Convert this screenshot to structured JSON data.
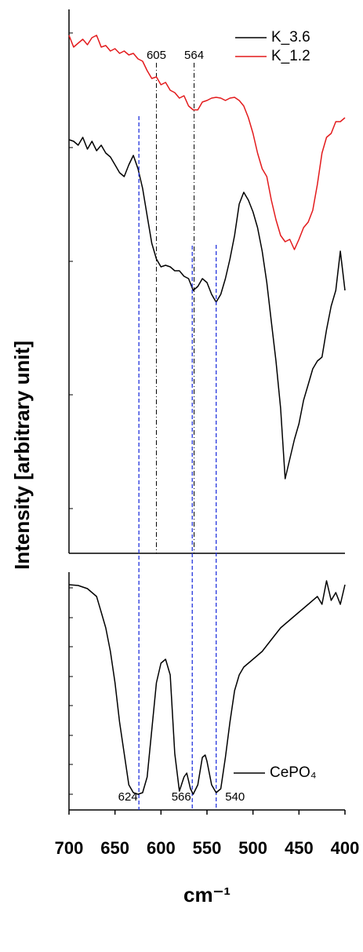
{
  "chart_data": [
    {
      "type": "line",
      "ylabel": "Intensity [arbitrary unit]",
      "xlim": [
        700,
        400
      ],
      "ylim": [
        0,
        690
      ],
      "yticks": [
        57,
        202,
        372,
        517,
        663
      ],
      "legend": "upper right",
      "markers": [
        605,
        564
      ],
      "x": [
        700,
        695,
        690,
        685,
        680,
        675,
        670,
        665,
        660,
        655,
        650,
        645,
        640,
        635,
        630,
        625,
        620,
        615,
        610,
        605,
        600,
        595,
        590,
        585,
        580,
        575,
        570,
        565,
        560,
        555,
        550,
        545,
        540,
        535,
        530,
        525,
        520,
        515,
        510,
        505,
        500,
        495,
        490,
        485,
        480,
        475,
        470,
        465,
        460,
        455,
        450,
        445,
        440,
        435,
        430,
        425,
        420,
        415,
        410,
        405,
        400
      ],
      "series": [
        {
          "name": "K_3.6",
          "color": "#000000",
          "values": [
            527,
            525,
            520,
            530,
            515,
            525,
            513,
            520,
            510,
            505,
            495,
            485,
            480,
            495,
            507,
            490,
            465,
            430,
            395,
            375,
            365,
            367,
            365,
            360,
            360,
            353,
            350,
            335,
            340,
            350,
            345,
            330,
            320,
            330,
            350,
            375,
            405,
            445,
            460,
            450,
            435,
            415,
            385,
            345,
            295,
            245,
            185,
            95,
            120,
            145,
            165,
            195,
            215,
            235,
            245,
            250,
            285,
            315,
            335,
            385,
            335
          ]
        },
        {
          "name": "K_1.2",
          "color": "#e31a1c",
          "values": [
            660,
            645,
            650,
            655,
            648,
            657,
            660,
            645,
            647,
            640,
            643,
            637,
            640,
            635,
            637,
            630,
            627,
            615,
            605,
            607,
            597,
            600,
            590,
            587,
            580,
            583,
            570,
            565,
            565,
            575,
            577,
            580,
            581,
            580,
            577,
            580,
            581,
            577,
            570,
            555,
            535,
            510,
            490,
            480,
            450,
            425,
            405,
            397,
            400,
            387,
            400,
            415,
            422,
            437,
            470,
            510,
            530,
            535,
            550,
            550,
            555
          ]
        }
      ]
    },
    {
      "type": "line",
      "xlabel": "cm⁻¹",
      "xlim": [
        700,
        400
      ],
      "xticks": [
        700,
        650,
        600,
        550,
        500,
        450,
        400
      ],
      "ylim": [
        0,
        300
      ],
      "yticks": [
        20,
        58,
        95,
        133,
        170,
        208,
        245,
        283
      ],
      "legend": "lower right",
      "peaks": [
        624,
        566,
        540
      ],
      "x": [
        700,
        690,
        680,
        670,
        665,
        660,
        655,
        650,
        645,
        640,
        635,
        630,
        625,
        620,
        615,
        610,
        605,
        600,
        595,
        590,
        585,
        580,
        575,
        572,
        568,
        565,
        560,
        555,
        552,
        550,
        545,
        540,
        535,
        530,
        525,
        520,
        515,
        510,
        505,
        500,
        490,
        480,
        470,
        460,
        450,
        440,
        430,
        425,
        420,
        415,
        410,
        405,
        400
      ],
      "series": [
        {
          "name": "CePO₄",
          "color": "#000000",
          "values": [
            287,
            286,
            282,
            272,
            252,
            232,
            202,
            162,
            112,
            72,
            32,
            22,
            20,
            22,
            42,
            102,
            162,
            187,
            192,
            172,
            72,
            24,
            42,
            47,
            27,
            20,
            32,
            67,
            70,
            62,
            32,
            22,
            27,
            67,
            112,
            152,
            172,
            182,
            187,
            192,
            202,
            217,
            232,
            242,
            252,
            262,
            272,
            262,
            292,
            267,
            277,
            262,
            287
          ]
        }
      ]
    }
  ]
}
